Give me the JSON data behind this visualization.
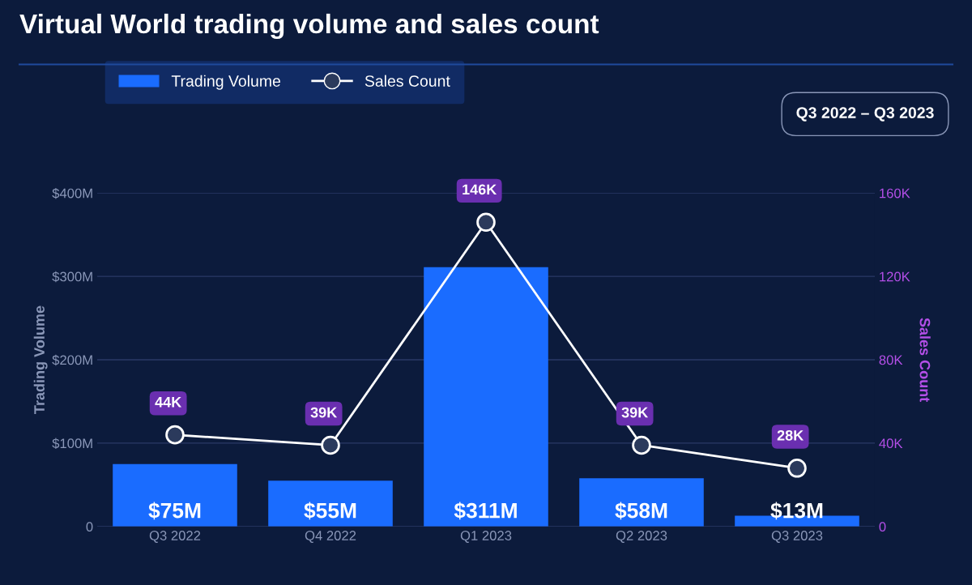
{
  "chart_data": {
    "type": "bar",
    "title": "Virtual World trading volume and sales count",
    "categories": [
      "Q3 2022",
      "Q4 2022",
      "Q1 2023",
      "Q2 2023",
      "Q3 2023"
    ],
    "series": [
      {
        "name": "Trading Volume",
        "color": "#1a6cff",
        "values": [
          75,
          55,
          311,
          58,
          13
        ],
        "value_labels": [
          "$75M",
          "$55M",
          "$311M",
          "$58M",
          "$13M"
        ]
      },
      {
        "name": "Sales Count",
        "type": "line",
        "axis": "y2",
        "color": "#ffffff",
        "marker": "circle",
        "values": [
          44,
          39,
          146,
          39,
          28
        ],
        "value_labels": [
          "44K",
          "39K",
          "146K",
          "39K",
          "28K"
        ]
      }
    ],
    "ylabel": "Trading Volume",
    "y2label": "Sales Count",
    "ylim": [
      0,
      400
    ],
    "yticks": [
      0,
      {
        "value": 100,
        "label": "$100M"
      },
      {
        "value": 200,
        "label": "$200M"
      },
      {
        "value": 300,
        "label": "$300M"
      },
      {
        "value": 400,
        "label": "$400M"
      }
    ],
    "y2lim": [
      0,
      160
    ],
    "y2ticks": [
      0,
      {
        "value": 40,
        "label": "40K"
      },
      {
        "value": 80,
        "label": "80K"
      },
      {
        "value": 120,
        "label": "120K"
      },
      {
        "value": 160,
        "label": "160K"
      }
    ],
    "grid": "y",
    "legend": "top left",
    "annotations": [
      "Q3 2022 – Q3 2023"
    ]
  }
}
